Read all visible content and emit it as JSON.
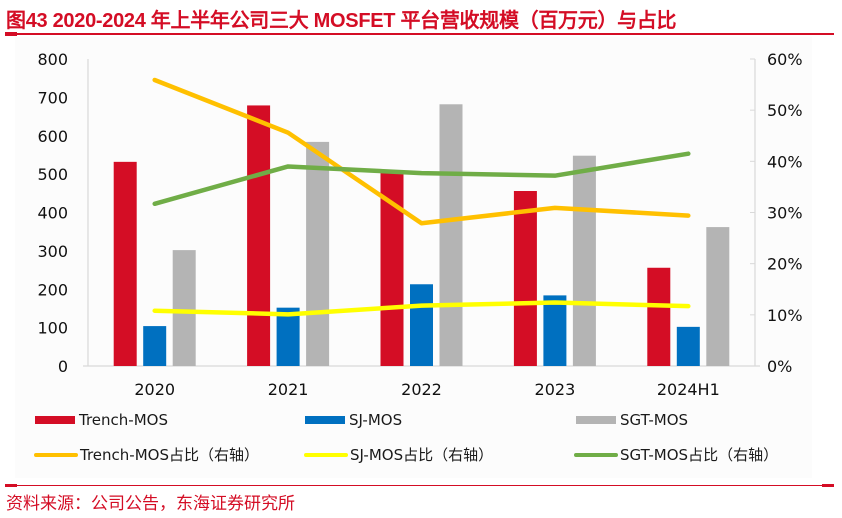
{
  "title": "图43  2020-2024 年上半年公司三大 MOSFET 平台营收规模（百万元）与占比",
  "source": "资料来源：公司公告，东海证券研究所",
  "colors": {
    "brand_red": "#d40d25",
    "trench": "#d40d25",
    "sj": "#0070c0",
    "sgt": "#b4b4b4",
    "trench_share": "#ffc000",
    "sj_share": "#ffff00",
    "sgt_share": "#70ad47"
  },
  "chart_data": {
    "type": "bar",
    "title": "2020-2024 年上半年公司三大 MOSFET 平台营收规模（百万元）与占比",
    "categories": [
      "2020",
      "2021",
      "2022",
      "2023",
      "2024H1"
    ],
    "xlabel": "",
    "ylabel": "",
    "ylim": [
      0,
      800
    ],
    "yticks": [
      "0",
      "100",
      "200",
      "300",
      "400",
      "500",
      "600",
      "700",
      "800"
    ],
    "y2lim": [
      0,
      60
    ],
    "y2ticks": [
      "0%",
      "10%",
      "20%",
      "30%",
      "40%",
      "50%",
      "60%"
    ],
    "grid": false,
    "legend_position": "bottom",
    "series": [
      {
        "name": "Trench-MOS",
        "kind": "bar",
        "axis": "left",
        "color": "#d40d25",
        "values": [
          532,
          679,
          503,
          456,
          256
        ]
      },
      {
        "name": "SJ-MOS",
        "kind": "bar",
        "axis": "left",
        "color": "#0070c0",
        "values": [
          104,
          152,
          213,
          184,
          102
        ]
      },
      {
        "name": "SGT-MOS",
        "kind": "bar",
        "axis": "left",
        "color": "#b4b4b4",
        "values": [
          302,
          584,
          682,
          548,
          362
        ]
      },
      {
        "name": "Trench-MOS占比（右轴）",
        "kind": "line",
        "axis": "right",
        "unit": "%",
        "color": "#ffc000",
        "values": [
          55.9,
          45.6,
          27.9,
          30.9,
          29.4
        ]
      },
      {
        "name": "SJ-MOS占比（右轴）",
        "kind": "line",
        "axis": "right",
        "unit": "%",
        "color": "#ffff00",
        "values": [
          10.8,
          10.1,
          11.8,
          12.4,
          11.7
        ]
      },
      {
        "name": "SGT-MOS占比（右轴）",
        "kind": "line",
        "axis": "right",
        "unit": "%",
        "color": "#70ad47",
        "values": [
          31.7,
          39.0,
          37.7,
          37.2,
          41.5
        ]
      }
    ]
  },
  "legend": [
    {
      "label": "Trench-MOS",
      "kind": "bar",
      "color": "#d40d25"
    },
    {
      "label": "SJ-MOS",
      "kind": "bar",
      "color": "#0070c0"
    },
    {
      "label": "SGT-MOS",
      "kind": "bar",
      "color": "#b4b4b4"
    },
    {
      "label": "Trench-MOS占比（右轴）",
      "kind": "line",
      "color": "#ffc000"
    },
    {
      "label": "SJ-MOS占比（右轴）",
      "kind": "line",
      "color": "#ffff00"
    },
    {
      "label": "SGT-MOS占比（右轴）",
      "kind": "line",
      "color": "#70ad47"
    }
  ]
}
